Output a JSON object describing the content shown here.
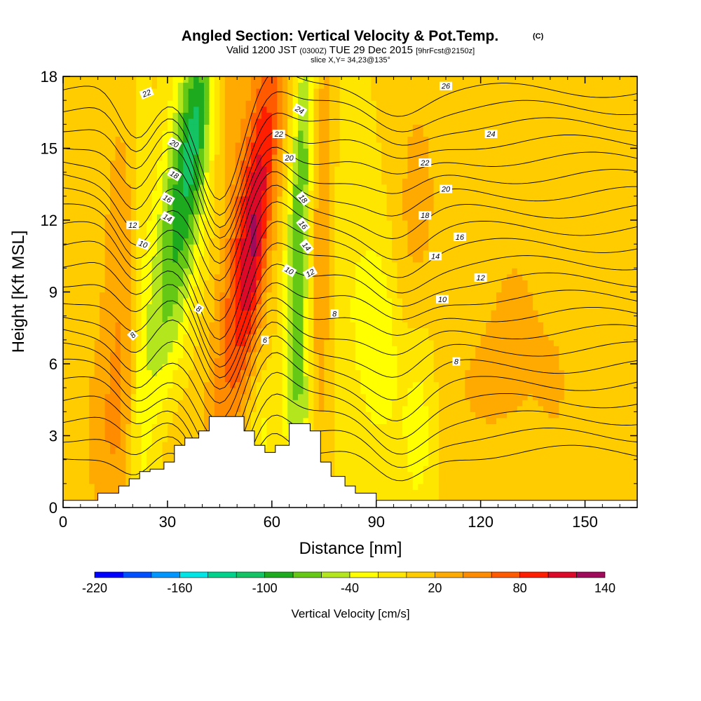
{
  "chart_data": {
    "type": "heatmap",
    "title": "Angled Section: Vertical Velocity & Pot.Temp.",
    "title_mark": "(C)",
    "subtitle_main": "Valid 1200 JST",
    "subtitle_utc": "(0300Z)",
    "subtitle_date": "TUE 29 Dec 2015",
    "subtitle_fcst": "[9hrFcst@2150z]",
    "slice_note": "slice X,Y= 34,23@135°",
    "xlabel": "Distance [nm]",
    "ylabel": "Height [Kft MSL]",
    "xlim": [
      0,
      165
    ],
    "ylim": [
      0,
      18
    ],
    "x_ticks": [
      0,
      30,
      60,
      90,
      120,
      150
    ],
    "y_ticks": [
      0,
      3,
      6,
      9,
      12,
      15,
      18
    ],
    "colorbar": {
      "title": "Vertical Velocity [cm/s]",
      "tick_labels": [
        -220,
        -160,
        -100,
        -40,
        20,
        80,
        140
      ],
      "bounds": [
        -220,
        -200,
        -180,
        -160,
        -140,
        -120,
        -100,
        -80,
        -60,
        -40,
        -20,
        0,
        20,
        40,
        60,
        80,
        100,
        120,
        140
      ],
      "colors": [
        "#0000ff",
        "#0050ff",
        "#0096ff",
        "#00e6e6",
        "#00d28c",
        "#14c364",
        "#1eaa1e",
        "#64c814",
        "#b4e61e",
        "#ffff00",
        "#ffe600",
        "#ffcc00",
        "#ffaa00",
        "#ff8c00",
        "#ff5a00",
        "#ff1e00",
        "#dc0a28",
        "#a00a5a",
        "#6e0a8c"
      ]
    },
    "velocity_field": {
      "base_value": 5,
      "features": [
        {
          "x": 18,
          "y": 7.5,
          "sx": 4.5,
          "sy": 6.5,
          "slope": 0.0,
          "value": 38
        },
        {
          "x": 12,
          "y": 3.0,
          "sx": 5,
          "sy": 3,
          "slope": 0.0,
          "value": 22
        },
        {
          "x": 22,
          "y": 6.0,
          "sx": 2.5,
          "sy": 10,
          "slope": 0.0,
          "value": -28
        },
        {
          "x": 33,
          "y": 12.0,
          "sx": 5,
          "sy": 6,
          "slope": 0.9,
          "value": -85
        },
        {
          "x": 38,
          "y": 16.0,
          "sx": 3,
          "sy": 3,
          "slope": 0.5,
          "value": -45
        },
        {
          "x": 54,
          "y": 12.0,
          "sx": 4.2,
          "sy": 6.5,
          "slope": 0.9,
          "value": 95
        },
        {
          "x": 55,
          "y": 10.0,
          "sx": 2.2,
          "sy": 3,
          "slope": 0.6,
          "value": 35
        },
        {
          "x": 47,
          "y": 17.0,
          "sx": 3,
          "sy": 2.5,
          "slope": 0.0,
          "value": 30
        },
        {
          "x": 68,
          "y": 12.0,
          "sx": 2.6,
          "sy": 7,
          "slope": 0.3,
          "value": -85
        },
        {
          "x": 69,
          "y": 3.5,
          "sx": 2,
          "sy": 3,
          "slope": 0.0,
          "value": -40
        },
        {
          "x": 74,
          "y": 12.0,
          "sx": 2.5,
          "sy": 7,
          "slope": 0.0,
          "value": 42
        },
        {
          "x": 83,
          "y": 9.0,
          "sx": 6,
          "sy": 6,
          "slope": 0.0,
          "value": -22
        },
        {
          "x": 92,
          "y": 7.0,
          "sx": 4,
          "sy": 3,
          "slope": 0.0,
          "value": -42
        },
        {
          "x": 102,
          "y": 4.0,
          "sx": 4,
          "sy": 3.5,
          "slope": 0.0,
          "value": -40
        },
        {
          "x": 102,
          "y": 13.0,
          "sx": 5,
          "sy": 4,
          "slope": 0.0,
          "value": 20
        },
        {
          "x": 98,
          "y": 8.0,
          "sx": 5,
          "sy": 3,
          "slope": 0.0,
          "value": 15
        },
        {
          "x": 120,
          "y": 5.0,
          "sx": 10,
          "sy": 2.5,
          "slope": 0.0,
          "value": 16
        },
        {
          "x": 130,
          "y": 8.5,
          "sx": 6,
          "sy": 3,
          "slope": 0.0,
          "value": 15
        },
        {
          "x": 142,
          "y": 5.0,
          "sx": 5,
          "sy": 3,
          "slope": 0.0,
          "value": 14
        },
        {
          "x": 162,
          "y": 11.0,
          "sx": 3.5,
          "sy": 3,
          "slope": 0.0,
          "value": 15
        },
        {
          "x": 32,
          "y": 2.5,
          "sx": 4,
          "sy": 2,
          "slope": 0.0,
          "value": 15
        },
        {
          "x": 58,
          "y": 3.0,
          "sx": 3,
          "sy": 2,
          "slope": 0.0,
          "value": -30
        },
        {
          "x": 62,
          "y": 2.0,
          "sx": 2.5,
          "sy": 1.5,
          "slope": 0.0,
          "value": 20
        }
      ]
    },
    "terrain": [
      [
        0,
        0.3
      ],
      [
        10,
        0.3
      ],
      [
        10,
        0.6
      ],
      [
        16,
        0.6
      ],
      [
        16,
        0.9
      ],
      [
        19,
        0.9
      ],
      [
        19,
        1.2
      ],
      [
        22,
        1.2
      ],
      [
        22,
        1.5
      ],
      [
        25,
        1.5
      ],
      [
        25,
        1.6
      ],
      [
        29,
        1.6
      ],
      [
        29,
        1.9
      ],
      [
        32,
        1.9
      ],
      [
        32,
        2.6
      ],
      [
        35,
        2.6
      ],
      [
        35,
        2.9
      ],
      [
        39,
        2.9
      ],
      [
        39,
        3.2
      ],
      [
        42,
        3.2
      ],
      [
        42,
        3.8
      ],
      [
        52,
        3.8
      ],
      [
        52,
        3.2
      ],
      [
        55,
        3.2
      ],
      [
        55,
        2.6
      ],
      [
        58,
        2.6
      ],
      [
        58,
        2.3
      ],
      [
        61,
        2.3
      ],
      [
        61,
        2.6
      ],
      [
        65,
        2.6
      ],
      [
        65,
        3.5
      ],
      [
        71,
        3.5
      ],
      [
        71,
        3.2
      ],
      [
        74,
        3.2
      ],
      [
        74,
        1.9
      ],
      [
        77,
        1.9
      ],
      [
        77,
        1.3
      ],
      [
        81,
        1.3
      ],
      [
        81,
        0.9
      ],
      [
        84,
        0.9
      ],
      [
        84,
        0.6
      ],
      [
        90,
        0.6
      ],
      [
        90,
        0.3
      ],
      [
        165,
        0.3
      ]
    ],
    "theta_contours": {
      "levels": [
        6,
        7,
        8,
        9,
        10,
        11,
        12,
        13,
        14,
        15,
        16,
        17,
        18,
        19,
        20,
        21,
        22,
        23,
        24,
        25,
        26,
        27
      ],
      "labels": [
        {
          "text": "22",
          "x": 24,
          "y": 17.3,
          "angle": -22
        },
        {
          "text": "24",
          "x": 68,
          "y": 16.6,
          "angle": 30
        },
        {
          "text": "26",
          "x": 110,
          "y": 17.6,
          "angle": 0
        },
        {
          "text": "22",
          "x": 62,
          "y": 15.6,
          "angle": 0
        },
        {
          "text": "24",
          "x": 123,
          "y": 15.6,
          "angle": 0
        },
        {
          "text": "20",
          "x": 32,
          "y": 15.2,
          "angle": 30
        },
        {
          "text": "20",
          "x": 65,
          "y": 14.6,
          "angle": 0
        },
        {
          "text": "22",
          "x": 104,
          "y": 14.4,
          "angle": 0
        },
        {
          "text": "18",
          "x": 32,
          "y": 13.9,
          "angle": 30
        },
        {
          "text": "20",
          "x": 110,
          "y": 13.3,
          "angle": 0
        },
        {
          "text": "18",
          "x": 69,
          "y": 12.9,
          "angle": 50
        },
        {
          "text": "16",
          "x": 30,
          "y": 12.9,
          "angle": 30
        },
        {
          "text": "14",
          "x": 30,
          "y": 12.1,
          "angle": 30
        },
        {
          "text": "12",
          "x": 20,
          "y": 11.8,
          "angle": 0
        },
        {
          "text": "16",
          "x": 69,
          "y": 11.8,
          "angle": 50
        },
        {
          "text": "18",
          "x": 104,
          "y": 12.2,
          "angle": 0
        },
        {
          "text": "16",
          "x": 114,
          "y": 11.3,
          "angle": 0
        },
        {
          "text": "10",
          "x": 23,
          "y": 11.0,
          "angle": 20
        },
        {
          "text": "14",
          "x": 70,
          "y": 10.9,
          "angle": 50
        },
        {
          "text": "14",
          "x": 107,
          "y": 10.5,
          "angle": 0
        },
        {
          "text": "10",
          "x": 65,
          "y": 9.9,
          "angle": 30
        },
        {
          "text": "12",
          "x": 71,
          "y": 9.8,
          "angle": -30
        },
        {
          "text": "12",
          "x": 120,
          "y": 9.6,
          "angle": 0
        },
        {
          "text": "10",
          "x": 109,
          "y": 8.7,
          "angle": 0
        },
        {
          "text": "8",
          "x": 39,
          "y": 8.3,
          "angle": 30
        },
        {
          "text": "8",
          "x": 78,
          "y": 8.1,
          "angle": 0
        },
        {
          "text": "8",
          "x": 20,
          "y": 7.2,
          "angle": -45
        },
        {
          "text": "6",
          "x": 58,
          "y": 7.0,
          "angle": 0
        },
        {
          "text": "8",
          "x": 113,
          "y": 6.1,
          "angle": 0
        }
      ]
    }
  }
}
